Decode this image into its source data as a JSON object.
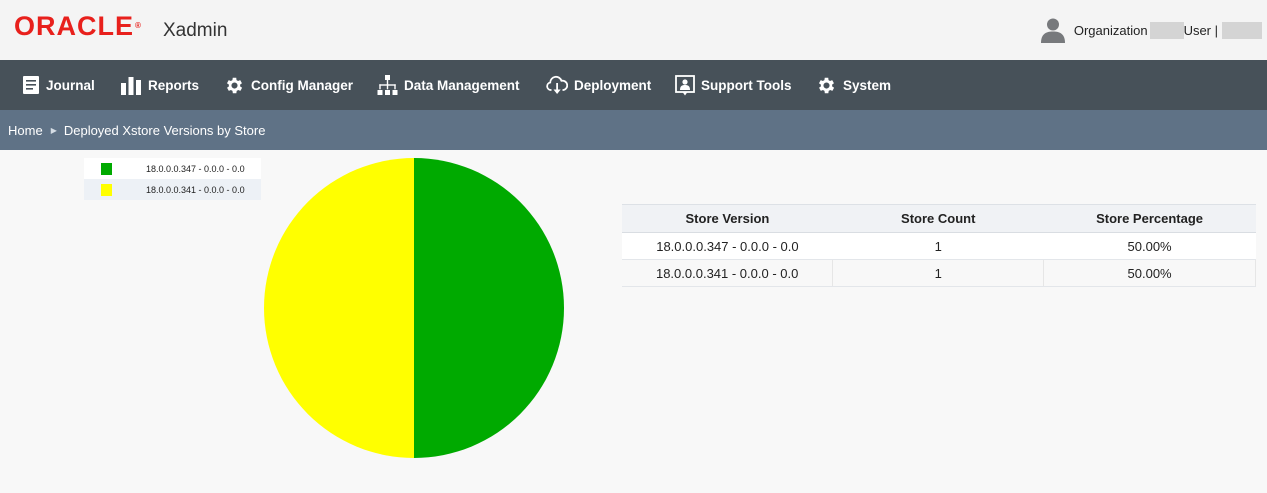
{
  "header": {
    "logo_text": "ORACLE",
    "logo_mark": "®",
    "app_name": "Xadmin",
    "org_label": "Organization",
    "user_label": "User |",
    "avatar_icon": "user-silhouette-icon"
  },
  "nav": {
    "items": [
      {
        "label": "Journal",
        "icon": "journal-icon"
      },
      {
        "label": "Reports",
        "icon": "bar-chart-icon"
      },
      {
        "label": "Config Manager",
        "icon": "gear-icon"
      },
      {
        "label": "Data Management",
        "icon": "hierarchy-icon"
      },
      {
        "label": "Deployment",
        "icon": "cloud-download-icon"
      },
      {
        "label": "Support Tools",
        "icon": "support-icon"
      },
      {
        "label": "System",
        "icon": "gear-icon"
      }
    ]
  },
  "breadcrumb": {
    "home": "Home",
    "current": "Deployed Xstore Versions by Store"
  },
  "colors": {
    "brand_red": "#e8201c",
    "nav_bg": "#475159",
    "breadcrumb_bg": "#5f7286",
    "series_green": "#00aa00",
    "series_yellow": "#ffff00"
  },
  "table": {
    "headers": [
      "Store Version",
      "Store Count",
      "Store Percentage"
    ],
    "rows": [
      [
        "18.0.0.0.347 - 0.0.0 - 0.0",
        "1",
        "50.00%"
      ],
      [
        "18.0.0.0.341 - 0.0.0 - 0.0",
        "1",
        "50.00%"
      ]
    ]
  },
  "chart_data": {
    "type": "pie",
    "categories": [
      "18.0.0.0.347 - 0.0.0 - 0.0",
      "18.0.0.0.341 - 0.0.0 - 0.0"
    ],
    "values": [
      1,
      1
    ],
    "colors": [
      "#00aa00",
      "#ffff00"
    ],
    "legend": "top-left"
  }
}
